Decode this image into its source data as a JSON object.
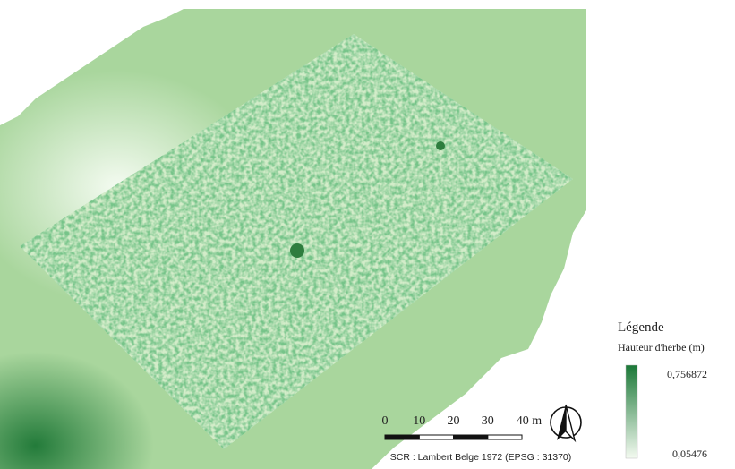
{
  "map": {
    "legend": {
      "title": "Légende",
      "subtitle": "Hauteur d'herbe (m)",
      "max": {
        "value": 0.756872,
        "label": "0,756872"
      },
      "min": {
        "value": 0.05476,
        "label": "0,05476"
      },
      "color_max": "#1b7837",
      "color_min": "#f3faf0"
    },
    "scale_bar": {
      "ticks": [
        0,
        10,
        20,
        30,
        {
          "value": 40,
          "label": "40 m"
        }
      ]
    },
    "crs": "SCR : Lambert Belge 1972 (EPSG : 31370)"
  }
}
